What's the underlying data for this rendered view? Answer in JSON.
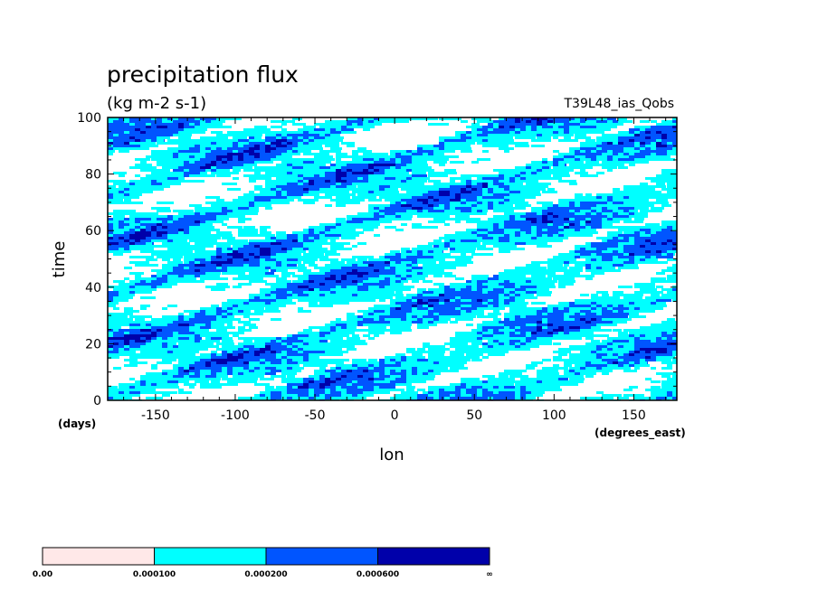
{
  "chart_data": {
    "type": "heatmap",
    "title": "precipitation flux",
    "units": "(kg m-2 s-1)",
    "experiment": "T39L48_ias_Qobs",
    "xlabel": "lon",
    "ylabel": "time",
    "x_units": "(degrees_east)",
    "y_units": "(days)",
    "xlim": [
      -180,
      177
    ],
    "ylim": [
      0,
      100
    ],
    "x_ticks": [
      -150,
      -100,
      -50,
      0,
      50,
      100,
      150
    ],
    "y_ticks": [
      0,
      20,
      40,
      60,
      80,
      100
    ],
    "colorbar": {
      "levels": [
        "0.00",
        "0.000100",
        "0.000200",
        "0.000600",
        "∞"
      ],
      "colors": [
        "#ffe8e8",
        "#00ffff",
        "#0055ff",
        "#0000aa"
      ]
    },
    "colors": {
      "white": "#ffffff",
      "cyan": "#00ffff",
      "blue": "#0055ff",
      "navy": "#0000aa"
    }
  }
}
